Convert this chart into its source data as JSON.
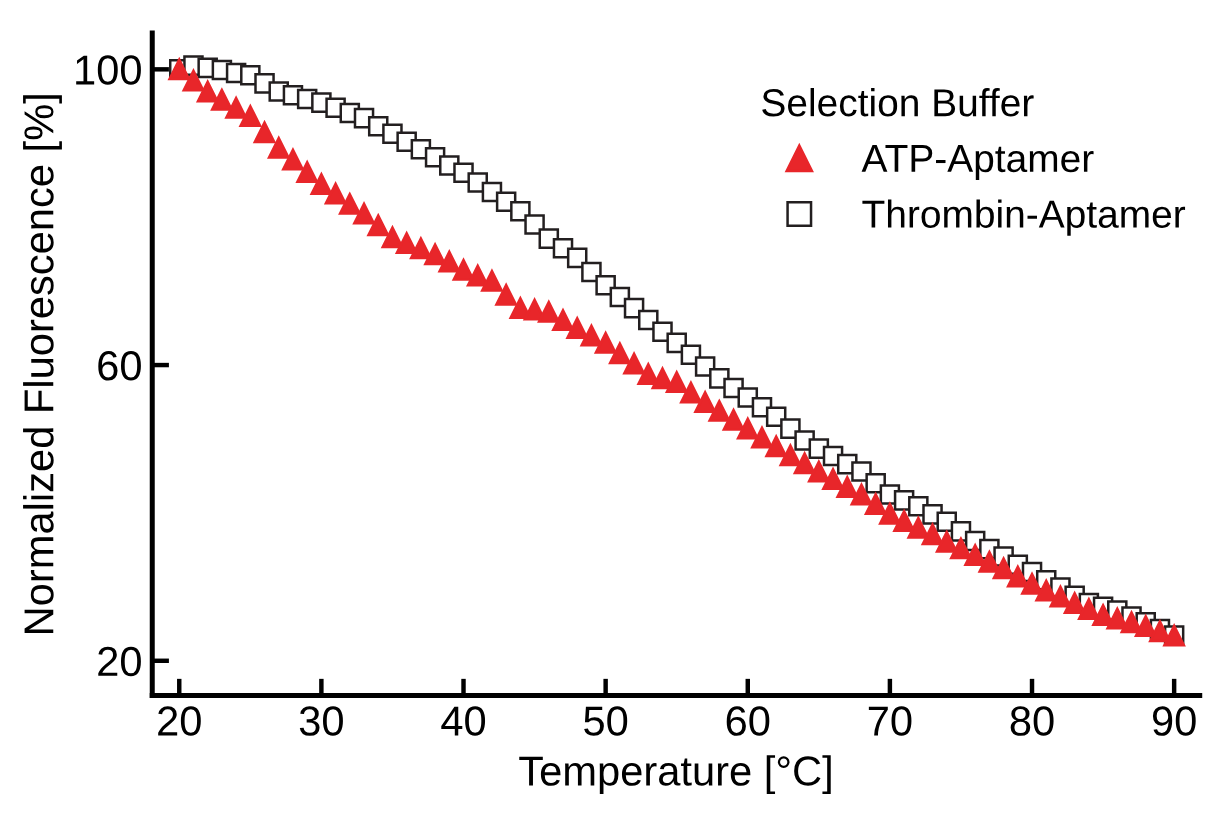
{
  "chart_data": {
    "type": "scatter",
    "xlabel": "Temperature [°C]",
    "ylabel": "Normalized Fluorescence [%]",
    "legend_title": "Selection Buffer",
    "legend": "top right",
    "grid": false,
    "x": [
      20,
      21,
      22,
      23,
      24,
      25,
      26,
      27,
      28,
      29,
      30,
      31,
      32,
      33,
      34,
      35,
      36,
      37,
      38,
      39,
      40,
      41,
      42,
      43,
      44,
      45,
      46,
      47,
      48,
      49,
      50,
      51,
      52,
      53,
      54,
      55,
      56,
      57,
      58,
      59,
      60,
      61,
      62,
      63,
      64,
      65,
      66,
      67,
      68,
      69,
      70,
      71,
      72,
      73,
      74,
      75,
      76,
      77,
      78,
      79,
      80,
      81,
      82,
      83,
      84,
      85,
      86,
      87,
      88,
      89,
      90
    ],
    "xlim": [
      18.1,
      91.8
    ],
    "xticks": [
      20,
      30,
      40,
      50,
      60,
      70,
      80,
      90
    ],
    "ylim": [
      15.3,
      104.9
    ],
    "yticks": [
      20,
      60,
      100
    ],
    "series": [
      {
        "name": "ATP-Aptamer",
        "color": "#e8262a",
        "marker": "triangle",
        "values": [
          100,
          98.5,
          97,
          95.9,
          94.8,
          93.7,
          91.5,
          89.4,
          87.8,
          86.1,
          84.5,
          83.2,
          81.8,
          80.5,
          78.9,
          77.3,
          76.5,
          75.8,
          75,
          74,
          72.9,
          72.1,
          71.4,
          69.5,
          67.7,
          67.5,
          67.2,
          66.1,
          65,
          64,
          63,
          61.6,
          60.2,
          58.8,
          58.2,
          57.7,
          56.3,
          55,
          53.8,
          52.6,
          51.4,
          50.2,
          49,
          47.8,
          46.7,
          45.6,
          44.6,
          43.5,
          42.5,
          41.2,
          39.9,
          38.9,
          38,
          37.1,
          36.1,
          35.2,
          34.3,
          33.4,
          32.5,
          31.4,
          30.4,
          29.5,
          28.7,
          27.8,
          27,
          26.2,
          25.7,
          25.2,
          24.7,
          24,
          23.4
        ]
      },
      {
        "name": "Thrombin-Aptamer",
        "color": "#231f20",
        "marker": "square",
        "values": [
          100,
          100.5,
          100.2,
          99.9,
          99.5,
          99.2,
          98.1,
          97,
          96.5,
          96,
          95.5,
          94.8,
          94.1,
          93.4,
          92.3,
          91.3,
          90.2,
          89.2,
          88.1,
          87,
          86,
          84.7,
          83.4,
          82.1,
          80.8,
          79,
          77.1,
          75.8,
          74.5,
          72.6,
          70.8,
          69.2,
          67.7,
          66.1,
          64.5,
          63,
          61.4,
          59.8,
          58.2,
          56.9,
          55.6,
          54.3,
          53,
          51.4,
          49.8,
          48.7,
          47.7,
          46.6,
          45.6,
          44,
          42.5,
          41.7,
          40.9,
          39.8,
          38.8,
          37.5,
          36.2,
          35.1,
          34.1,
          33,
          32,
          30.9,
          29.9,
          28.8,
          27.8,
          27.3,
          26.8,
          26,
          25.2,
          24.3,
          23.4
        ]
      }
    ]
  }
}
